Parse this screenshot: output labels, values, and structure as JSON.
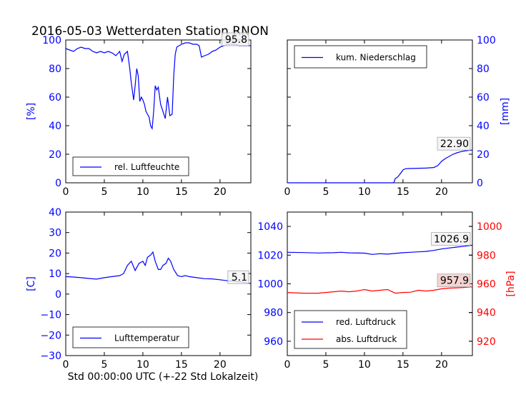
{
  "figure": {
    "title": "2016-05-03 Wetterdaten Station RNON",
    "xlabel": "Std 00:00:00 UTC (+-22 Std Lokalzeit)"
  },
  "colors": {
    "blue": "#0000ff",
    "red": "#ff0000"
  },
  "chart_data": [
    {
      "type": "line",
      "panel": "top-left",
      "ylabel": "[%]",
      "xlim": [
        0,
        24
      ],
      "ylim": [
        0,
        100
      ],
      "x_ticks": [
        0,
        5,
        10,
        15,
        20
      ],
      "y_ticks": [
        0,
        20,
        40,
        60,
        80,
        100
      ],
      "y_axis_side": "left",
      "legend": {
        "placement": "bottom-left"
      },
      "last_value_label": "95.8",
      "series": [
        {
          "name": "rel. Luftfeuchte",
          "color": "#0000ff",
          "x": [
            0,
            0.5,
            1,
            1.5,
            2,
            2.5,
            3,
            3.5,
            4,
            4.5,
            5,
            5.5,
            6,
            6.5,
            7,
            7.3,
            7.6,
            8,
            8.3,
            8.5,
            8.8,
            9,
            9.2,
            9.4,
            9.6,
            9.8,
            10,
            10.2,
            10.4,
            10.6,
            10.8,
            11,
            11.2,
            11.4,
            11.6,
            11.8,
            12,
            12.3,
            12.6,
            12.9,
            13.2,
            13.5,
            13.8,
            14,
            14.2,
            14.4,
            14.7,
            15,
            15.5,
            16,
            16.5,
            17,
            17.3,
            17.6,
            18,
            18.5,
            19,
            19.5,
            20,
            20.5,
            21,
            21.5,
            22,
            22.5,
            23,
            23.5,
            24
          ],
          "values": [
            94,
            93,
            92,
            94,
            95,
            94,
            94,
            92,
            91,
            92,
            91,
            92,
            91,
            89,
            92,
            85,
            90,
            92,
            80,
            70,
            58,
            68,
            80,
            75,
            57,
            60,
            58,
            55,
            50,
            48,
            46,
            40,
            38,
            50,
            68,
            65,
            67,
            55,
            50,
            45,
            60,
            47,
            48,
            75,
            90,
            95,
            96,
            97,
            98,
            98,
            97,
            97,
            96,
            88,
            89,
            90,
            92,
            93,
            95,
            96,
            97,
            97,
            97,
            96,
            96,
            96,
            96
          ]
        }
      ]
    },
    {
      "type": "line",
      "panel": "top-right",
      "ylabel": "[mm]",
      "xlim": [
        0,
        24
      ],
      "ylim": [
        0,
        100
      ],
      "x_ticks": [
        0,
        5,
        10,
        15,
        20
      ],
      "y_ticks": [
        0,
        20,
        40,
        60,
        80,
        100
      ],
      "y_axis_side": "right",
      "legend": {
        "placement": "top-left"
      },
      "last_value_label": "22.90",
      "series": [
        {
          "name": "kum. Niederschlag",
          "color": "#0000ff",
          "x": [
            0,
            5,
            10,
            13.8,
            14,
            14.3,
            14.6,
            15,
            15.3,
            15.7,
            16,
            18,
            19,
            19.5,
            20,
            20.5,
            21,
            21.5,
            22,
            22.5,
            23,
            23.5,
            24
          ],
          "values": [
            0,
            0,
            0,
            0,
            3,
            4,
            6,
            9,
            9.8,
            10,
            10,
            10.3,
            10.7,
            12,
            15,
            17,
            18.5,
            20,
            21,
            21.8,
            22.3,
            22.7,
            22.9
          ]
        }
      ]
    },
    {
      "type": "line",
      "panel": "bottom-left",
      "ylabel": "[C]",
      "xlim": [
        0,
        24
      ],
      "ylim": [
        -30,
        40
      ],
      "x_ticks": [
        0,
        5,
        10,
        15,
        20
      ],
      "y_ticks": [
        -30,
        -20,
        -10,
        0,
        10,
        20,
        30,
        40
      ],
      "y_axis_side": "left",
      "legend": {
        "placement": "bottom-left"
      },
      "last_value_label": "5.1",
      "series": [
        {
          "name": "Lufttemperatur",
          "color": "#0000ff",
          "x": [
            0,
            1,
            2,
            3,
            4,
            5,
            6,
            7,
            7.5,
            8,
            8.5,
            9,
            9.5,
            10,
            10.3,
            10.6,
            11,
            11.3,
            11.6,
            12,
            12.3,
            12.6,
            13,
            13.3,
            13.6,
            14,
            14.5,
            15,
            15.5,
            16,
            17,
            18,
            19,
            20,
            21,
            22,
            23,
            24
          ],
          "values": [
            8.5,
            8.3,
            8,
            7.6,
            7.3,
            8,
            8.5,
            9,
            10,
            14,
            16,
            11.5,
            15,
            16,
            14,
            18,
            19,
            20.5,
            16,
            12,
            12,
            14,
            15,
            17.5,
            16,
            12,
            9,
            8.5,
            9,
            8.5,
            8,
            7.5,
            7.4,
            7,
            6.5,
            6.2,
            5.8,
            5.1
          ]
        }
      ]
    },
    {
      "type": "line",
      "panel": "bottom-right",
      "ylabel": "[hPa]",
      "xlim": [
        0,
        24
      ],
      "ylim": [
        950,
        1050
      ],
      "y_ticks": [
        960,
        980,
        1000,
        1020,
        1040
      ],
      "secondary_ylim": [
        910,
        1010
      ],
      "secondary_y_ticks": [
        920,
        940,
        960,
        980,
        1000
      ],
      "x_ticks": [
        0,
        5,
        10,
        15,
        20
      ],
      "legend": {
        "placement": "bottom-left"
      },
      "series": [
        {
          "name": "red. Luftdruck",
          "color": "#0000ff",
          "axis": "left",
          "last_value_label": "1026.9",
          "x": [
            0,
            2,
            4,
            6,
            7,
            8,
            10,
            11,
            12,
            13,
            14,
            15,
            16,
            17,
            18,
            19,
            20,
            21,
            22,
            23,
            24
          ],
          "values": [
            1022,
            1021.8,
            1021.5,
            1021.7,
            1022,
            1021.6,
            1021.4,
            1020.5,
            1021,
            1020.7,
            1021.2,
            1021.7,
            1022,
            1022.3,
            1022.6,
            1023.3,
            1024.3,
            1025,
            1025.6,
            1026.2,
            1026.9
          ]
        }
      ],
      "secondary_series": [
        {
          "name": "abs. Luftdruck",
          "color": "#ff0000",
          "axis": "right",
          "last_value_label": "957.9",
          "x": [
            0,
            2,
            4,
            5,
            6,
            7,
            8,
            9,
            10,
            11,
            12,
            13,
            14,
            15,
            16,
            17,
            18,
            19,
            20,
            21,
            22,
            23,
            24
          ],
          "values": [
            954,
            953.5,
            953.5,
            954,
            954.5,
            955,
            954.5,
            955,
            956,
            955,
            955.5,
            956,
            953.5,
            954,
            954.2,
            955.5,
            955,
            955.5,
            956.5,
            957,
            957.2,
            957.5,
            957.9
          ]
        }
      ]
    }
  ]
}
